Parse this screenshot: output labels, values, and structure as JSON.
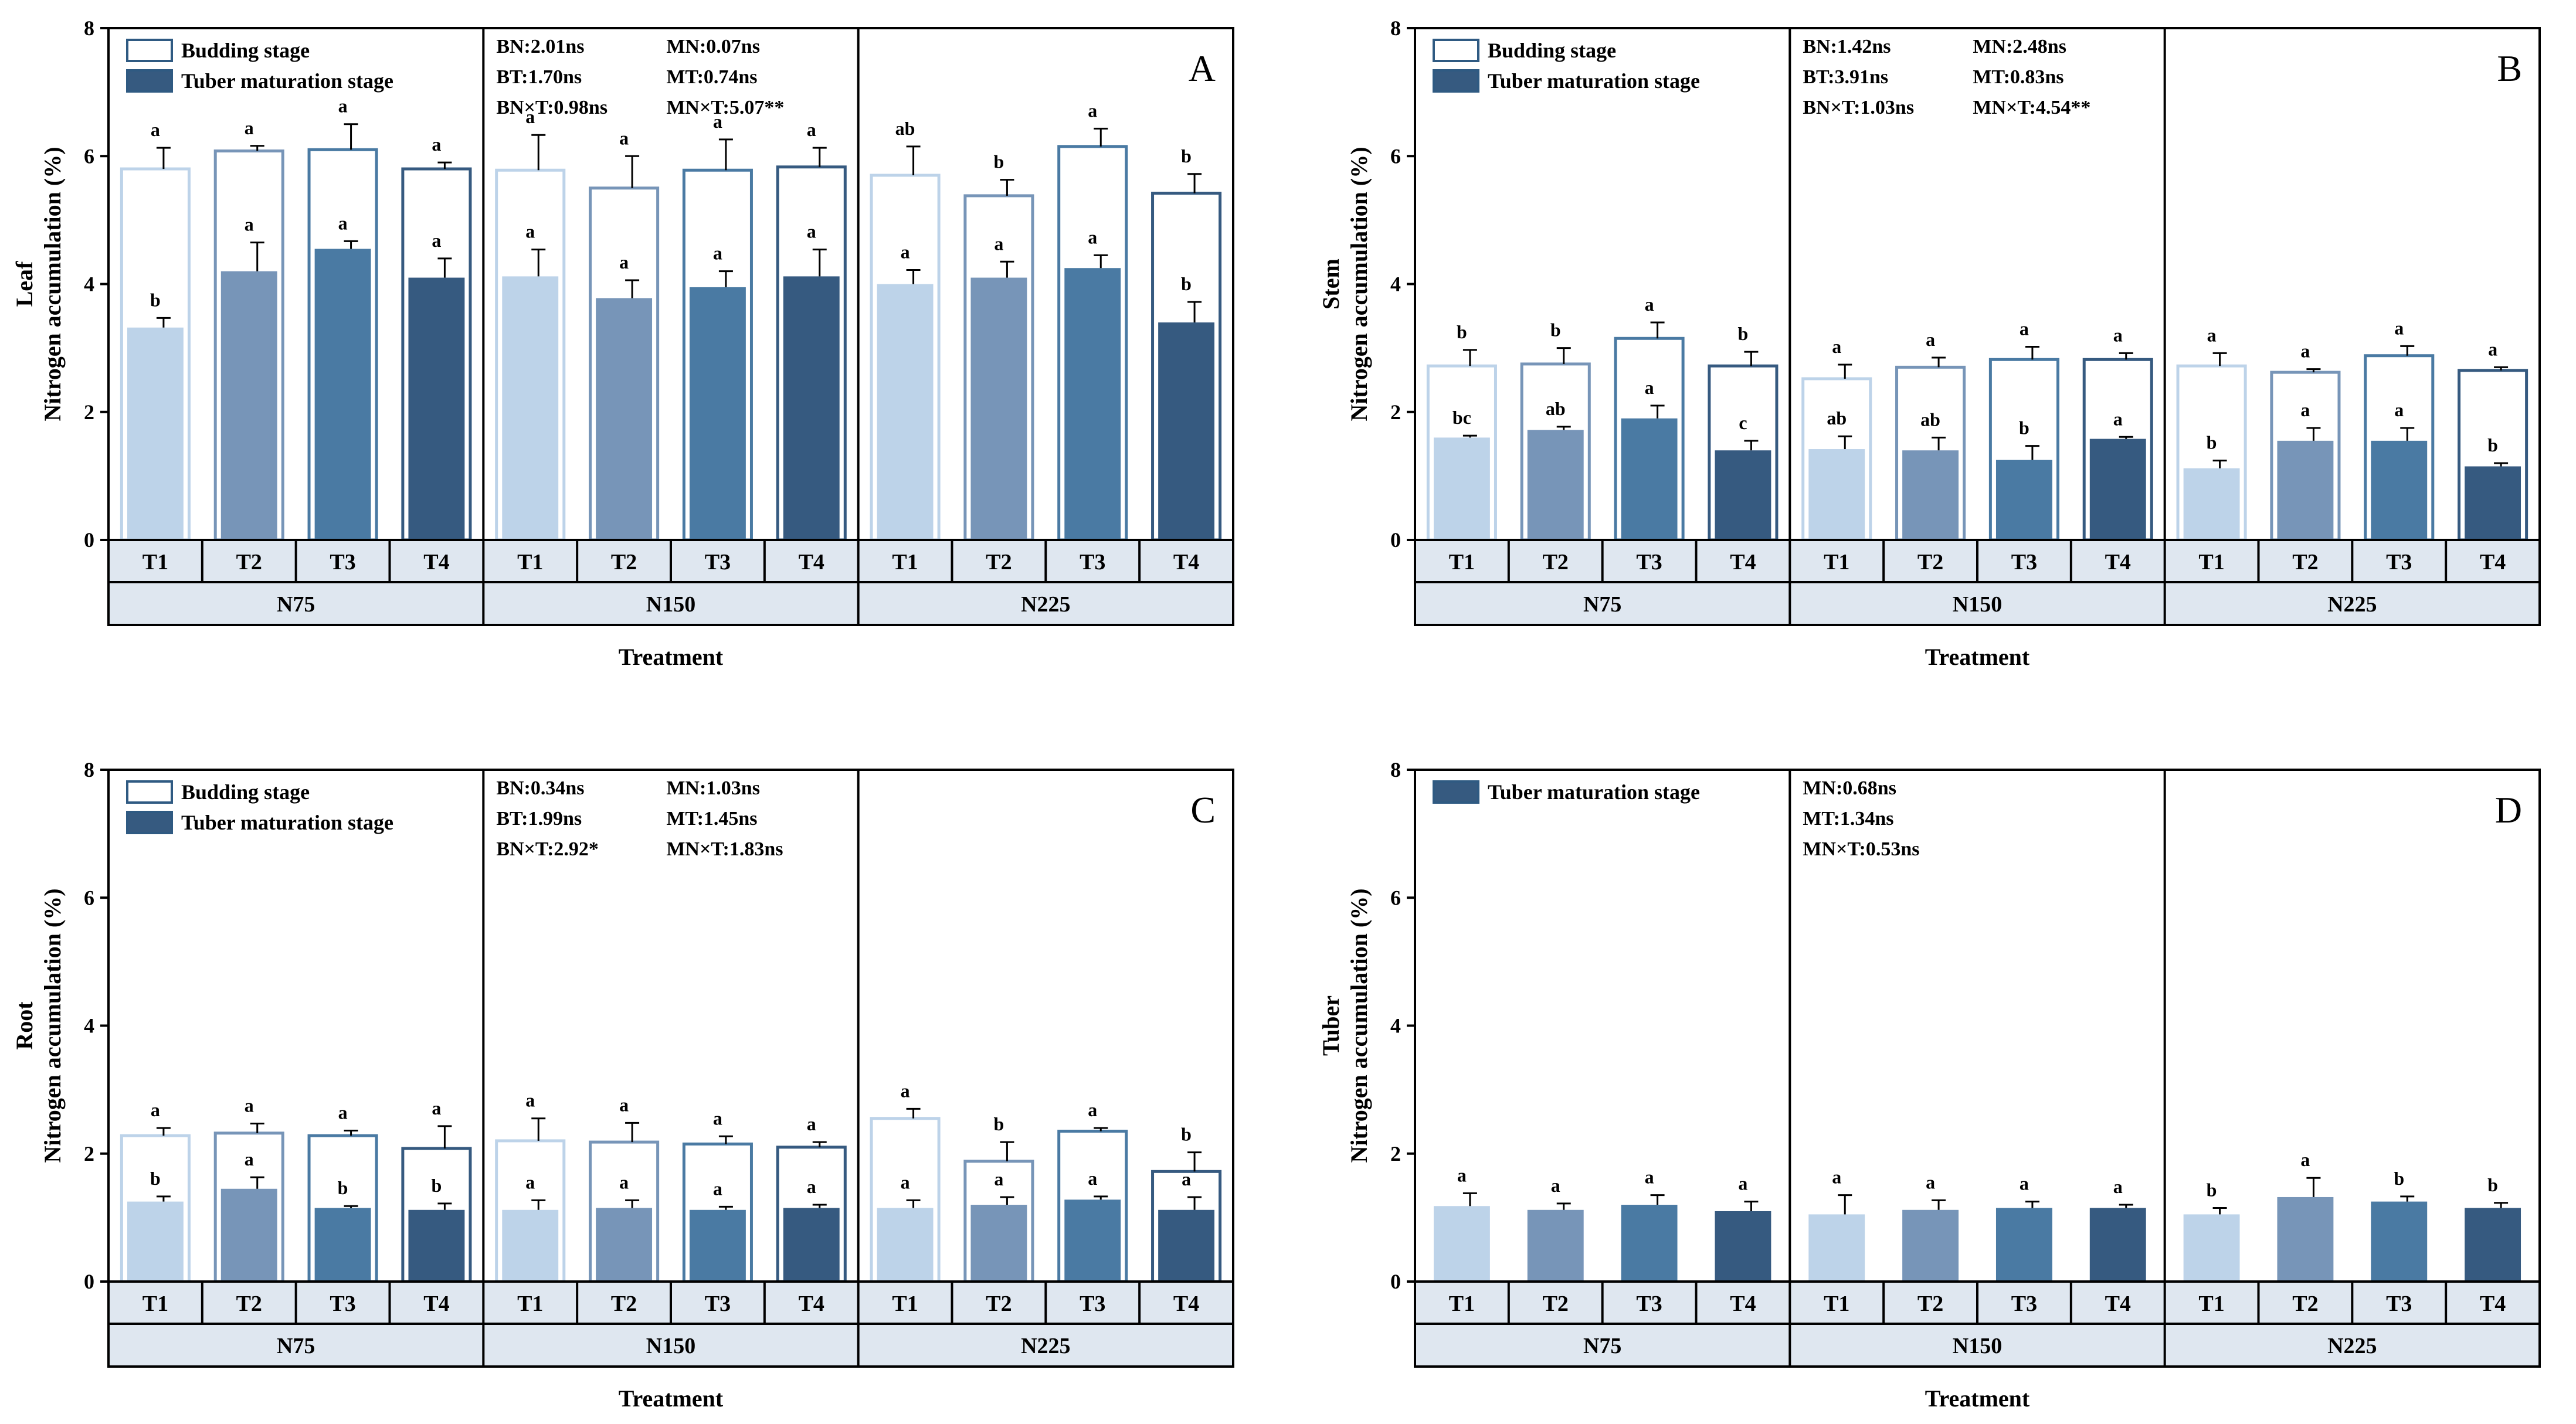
{
  "colors": {
    "shades": [
      "#bdd3e9",
      "#7795b8",
      "#4a7aa3",
      "#365a80"
    ],
    "outline": "#2f5a82",
    "table_fill": "#dfe7f0"
  },
  "axis": {
    "ylim": [
      0,
      8
    ],
    "yticks": [
      "0",
      "2",
      "4",
      "6",
      "8"
    ],
    "ylabel": "Nitrogen accumulation (%)",
    "xlabel": "Treatment"
  },
  "groups": [
    "N75",
    "N150",
    "N225"
  ],
  "treatments": [
    "T1",
    "T2",
    "T3",
    "T4"
  ],
  "legend_labels": {
    "budding": "Budding stage",
    "tuber": "Tuber maturation stage"
  },
  "chart_data": [
    {
      "type": "bar",
      "panel": "A",
      "organ": "Leaf",
      "legend": [
        "Budding stage",
        "Tuber maturation stage"
      ],
      "stats": [
        [
          "BN:2.01ns",
          "MN:0.07ns"
        ],
        [
          "BT:1.70ns",
          "MT:0.74ns"
        ],
        [
          "BN×T:0.98ns",
          "MN×T:5.07**"
        ]
      ],
      "series": [
        {
          "name": "Budding stage",
          "values": [
            5.8,
            6.08,
            6.1,
            5.8,
            5.78,
            5.5,
            5.78,
            5.83,
            5.7,
            5.38,
            6.15,
            5.42
          ],
          "errors": [
            0.33,
            0.08,
            0.4,
            0.1,
            0.55,
            0.5,
            0.48,
            0.3,
            0.45,
            0.25,
            0.28,
            0.3
          ],
          "letters": [
            "a",
            "a",
            "a",
            "a",
            "a",
            "a",
            "a",
            "a",
            "ab",
            "b",
            "a",
            "b"
          ]
        },
        {
          "name": "Tuber maturation stage",
          "values": [
            3.32,
            4.2,
            4.55,
            4.1,
            4.12,
            3.78,
            3.95,
            4.12,
            4.0,
            4.1,
            4.25,
            3.4
          ],
          "errors": [
            0.15,
            0.45,
            0.12,
            0.3,
            0.42,
            0.28,
            0.25,
            0.42,
            0.22,
            0.25,
            0.2,
            0.32
          ],
          "letters": [
            "b",
            "a",
            "a",
            "a",
            "a",
            "a",
            "a",
            "a",
            "a",
            "a",
            "a",
            "b"
          ]
        }
      ]
    },
    {
      "type": "bar",
      "panel": "B",
      "organ": "Stem",
      "legend": [
        "Budding stage",
        "Tuber maturation stage"
      ],
      "stats": [
        [
          "BN:1.42ns",
          "MN:2.48ns"
        ],
        [
          "BT:3.91ns",
          "MT:0.83ns"
        ],
        [
          "BN×T:1.03ns",
          "MN×T:4.54**"
        ]
      ],
      "series": [
        {
          "name": "Budding stage",
          "values": [
            2.72,
            2.75,
            3.15,
            2.72,
            2.52,
            2.7,
            2.82,
            2.82,
            2.72,
            2.62,
            2.88,
            2.65
          ],
          "errors": [
            0.25,
            0.25,
            0.25,
            0.22,
            0.22,
            0.15,
            0.2,
            0.1,
            0.2,
            0.05,
            0.15,
            0.05
          ],
          "letters": [
            "b",
            "b",
            "a",
            "b",
            "a",
            "a",
            "a",
            "a",
            "a",
            "a",
            "a",
            "a"
          ]
        },
        {
          "name": "Tuber maturation stage",
          "values": [
            1.6,
            1.72,
            1.9,
            1.4,
            1.42,
            1.4,
            1.25,
            1.58,
            1.12,
            1.55,
            1.55,
            1.15
          ],
          "errors": [
            0.03,
            0.05,
            0.2,
            0.15,
            0.2,
            0.2,
            0.22,
            0.03,
            0.12,
            0.2,
            0.2,
            0.05
          ],
          "letters": [
            "bc",
            "ab",
            "a",
            "c",
            "ab",
            "ab",
            "b",
            "a",
            "b",
            "a",
            "a",
            "b"
          ]
        }
      ]
    },
    {
      "type": "bar",
      "panel": "C",
      "organ": "Root",
      "legend": [
        "Budding stage",
        "Tuber maturation stage"
      ],
      "stats": [
        [
          "BN:0.34ns",
          "MN:1.03ns"
        ],
        [
          "BT:1.99ns",
          "MT:1.45ns"
        ],
        [
          "BN×T:2.92*",
          "MN×T:1.83ns"
        ]
      ],
      "series": [
        {
          "name": "Budding stage",
          "values": [
            2.28,
            2.32,
            2.28,
            2.08,
            2.2,
            2.18,
            2.15,
            2.1,
            2.55,
            1.88,
            2.35,
            1.72
          ],
          "errors": [
            0.12,
            0.15,
            0.08,
            0.35,
            0.35,
            0.3,
            0.12,
            0.08,
            0.15,
            0.3,
            0.05,
            0.3
          ],
          "letters": [
            "a",
            "a",
            "a",
            "a",
            "a",
            "a",
            "a",
            "a",
            "a",
            "b",
            "a",
            "b"
          ]
        },
        {
          "name": "Tuber maturation stage",
          "values": [
            1.25,
            1.45,
            1.15,
            1.12,
            1.12,
            1.15,
            1.12,
            1.15,
            1.15,
            1.2,
            1.28,
            1.12
          ],
          "errors": [
            0.08,
            0.18,
            0.03,
            0.1,
            0.15,
            0.12,
            0.05,
            0.05,
            0.12,
            0.12,
            0.05,
            0.2
          ],
          "letters": [
            "b",
            "a",
            "b",
            "b",
            "a",
            "a",
            "a",
            "a",
            "a",
            "a",
            "a",
            "a"
          ]
        }
      ]
    },
    {
      "type": "bar",
      "panel": "D",
      "organ": "Tuber",
      "legend": [
        "Tuber maturation stage"
      ],
      "stats": [
        [
          "MN:0.68ns",
          ""
        ],
        [
          "MT:1.34ns",
          ""
        ],
        [
          "MN×T:0.53ns",
          ""
        ]
      ],
      "series": [
        {
          "name": "Tuber maturation stage",
          "values": [
            1.18,
            1.12,
            1.2,
            1.1,
            1.05,
            1.12,
            1.15,
            1.15,
            1.05,
            1.32,
            1.25,
            1.15
          ],
          "errors": [
            0.2,
            0.1,
            0.15,
            0.15,
            0.3,
            0.15,
            0.1,
            0.05,
            0.1,
            0.3,
            0.08,
            0.08
          ],
          "letters": [
            "a",
            "a",
            "a",
            "a",
            "a",
            "a",
            "a",
            "a",
            "b",
            "a",
            "b",
            "b"
          ]
        }
      ]
    }
  ]
}
